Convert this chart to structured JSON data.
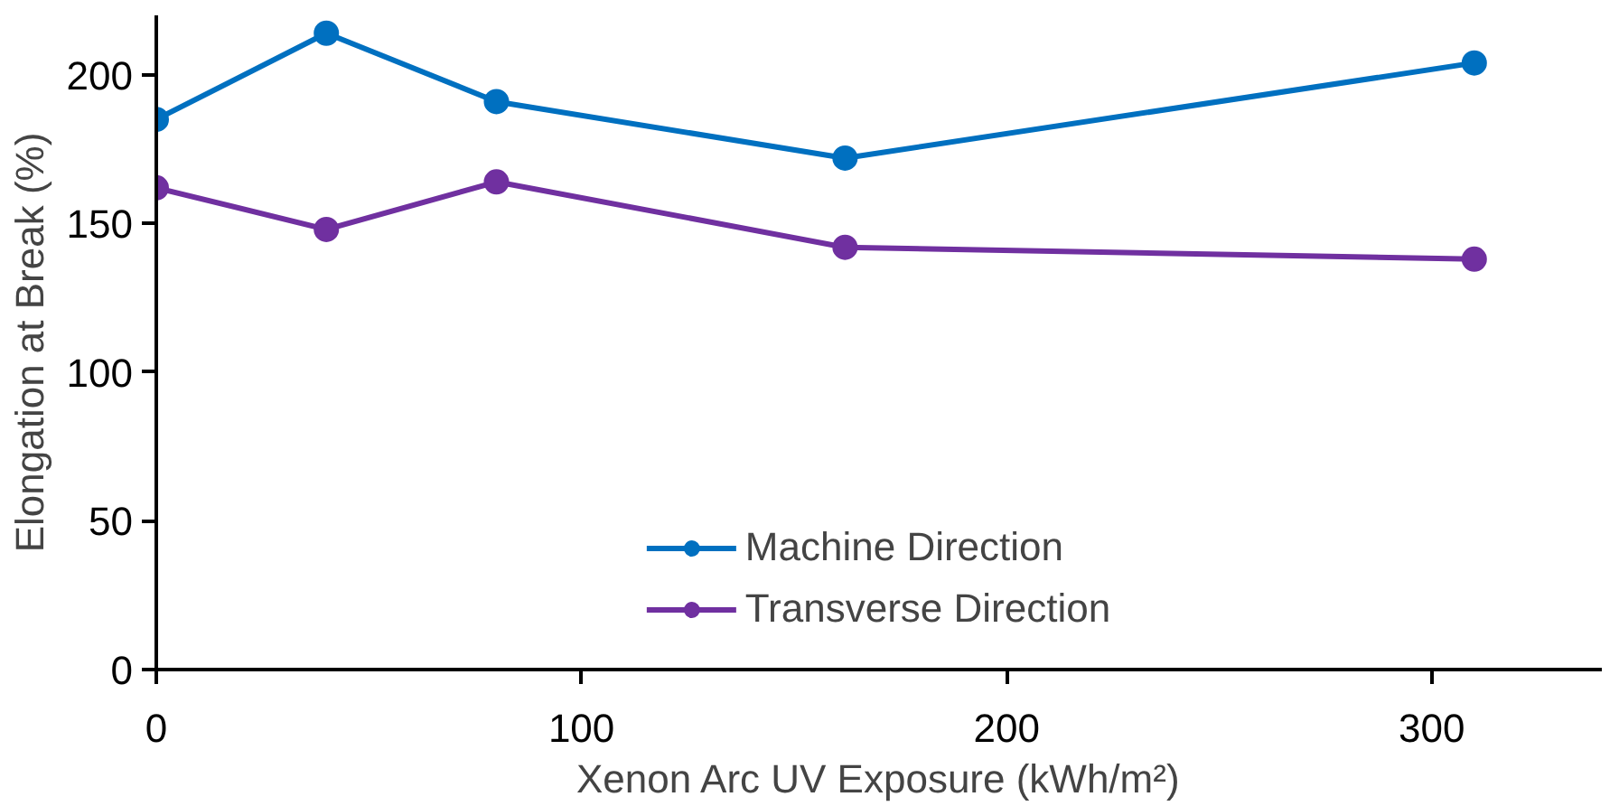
{
  "chart_data": {
    "type": "line",
    "xlabel": "Xenon Arc UV Exposure (kWh/m²)",
    "ylabel": "Elongation at Break (%)",
    "x": [
      0,
      40,
      80,
      162,
      310
    ],
    "series": [
      {
        "name": "Machine Direction",
        "color": "#0070c0",
        "values": [
          185,
          214,
          191,
          172,
          204
        ]
      },
      {
        "name": "Transverse Direction",
        "color": "#7030a0",
        "values": [
          162,
          148,
          164,
          142,
          138
        ]
      }
    ],
    "xlim": [
      0,
      340
    ],
    "ylim": [
      0,
      220
    ],
    "xticks": [
      0,
      100,
      200,
      300
    ],
    "yticks": [
      0,
      50,
      100,
      150,
      200
    ],
    "grid": false,
    "legend": "bottom",
    "marker": "circle",
    "line_style": "solid"
  }
}
